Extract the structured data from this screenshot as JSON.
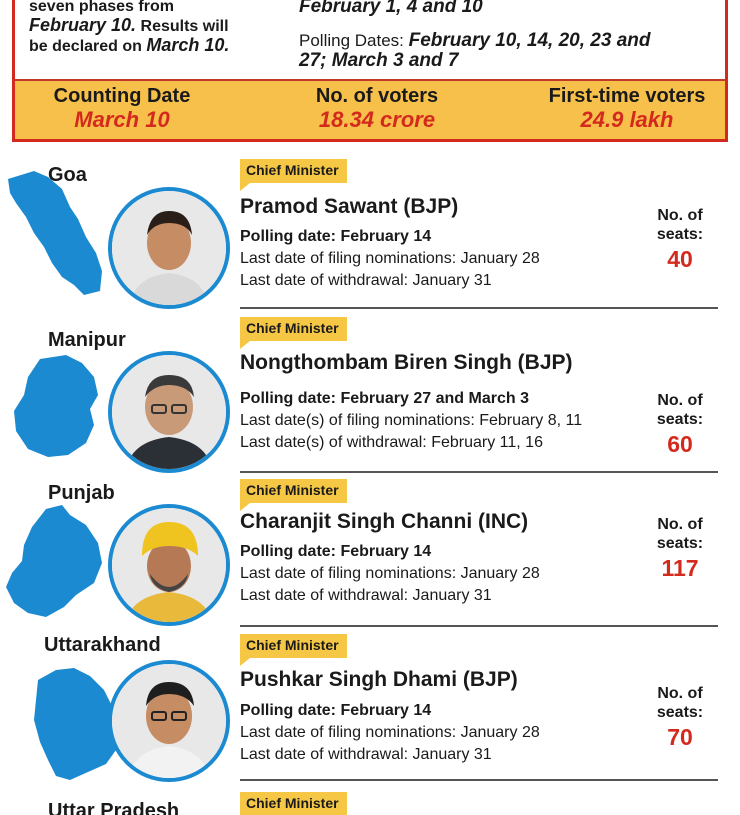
{
  "header": {
    "intro_line1": "seven phases from",
    "intro_date": "February 10.",
    "intro_line2": "Results will",
    "intro_line3": "be declared on",
    "intro_result_date": "March 10.",
    "phase_dates": "February 1, 4 and 10",
    "polling_label": "Polling Dates:",
    "polling_dates_a": "February 10, 14, 20, 23 and",
    "polling_dates_b": "27; March 3 and 7"
  },
  "stats": {
    "counting_label": "Counting Date",
    "counting_value": "March 10",
    "voters_label": "No. of voters",
    "voters_value": "18.34 crore",
    "first_time_label": "First-time voters",
    "first_time_value": "24.9 lakh"
  },
  "colors": {
    "accent_red": "#d42a1e",
    "banner_yellow": "#f7c04a",
    "map_blue": "#1b8ad1"
  },
  "states": [
    {
      "name": "Goa",
      "cm_tag": "Chief Minister",
      "cm_name": "Pramod Sawant (BJP)",
      "polling": "Polling date: February 14",
      "nominations": "Last date of filing nominations: January 28",
      "withdrawal": "Last date of withdrawal: January 31",
      "seats_label_a": "No. of",
      "seats_label_b": "seats:",
      "seats": "40"
    },
    {
      "name": "Manipur",
      "cm_tag": "Chief Minister",
      "cm_name": "Nongthombam Biren Singh (BJP)",
      "polling": "Polling date: February 27 and March 3",
      "nominations": "Last date(s) of filing nominations: February 8, 11",
      "withdrawal": "Last date(s) of withdrawal: February 11, 16",
      "seats_label_a": "No. of",
      "seats_label_b": "seats:",
      "seats": "60"
    },
    {
      "name": "Punjab",
      "cm_tag": "Chief Minister",
      "cm_name": "Charanjit Singh Channi (INC)",
      "polling": "Polling date: February 14",
      "nominations": "Last date of filing nominations: January 28",
      "withdrawal": "Last date of withdrawal: January 31",
      "seats_label_a": "No. of",
      "seats_label_b": "seats:",
      "seats": "117"
    },
    {
      "name": "Uttarakhand",
      "cm_tag": "Chief Minister",
      "cm_name": "Pushkar Singh Dhami (BJP)",
      "polling": "Polling date: February 14",
      "nominations": "Last date of filing nominations: January 28",
      "withdrawal": "Last date of withdrawal: January 31",
      "seats_label_a": "No. of",
      "seats_label_b": "seats:",
      "seats": "70"
    },
    {
      "name": "Uttar Pradesh",
      "cm_tag": "Chief Minister"
    }
  ]
}
